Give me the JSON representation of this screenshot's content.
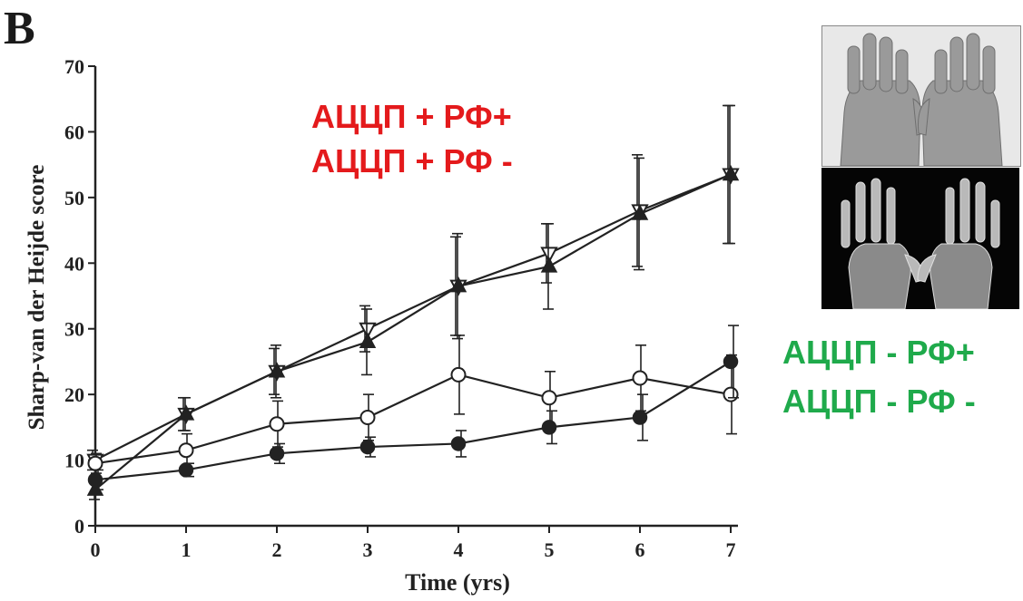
{
  "panel_label": "B",
  "overlay_labels": {
    "red": [
      "АЦЦП + РФ+",
      "АЦЦП + РФ -"
    ],
    "green": [
      "АЦЦП - РФ+",
      "АЦЦП - РФ -"
    ]
  },
  "colors": {
    "red_label": "#e41a1c",
    "green_label": "#1faa4b",
    "plot_ink": "#222222"
  },
  "chart_data": {
    "type": "line",
    "xlabel": "Time (yrs)",
    "ylabel": "Sharp-van der Heijde score",
    "xlim": [
      0,
      7
    ],
    "ylim": [
      0,
      70
    ],
    "xticks": [
      0,
      1,
      2,
      3,
      4,
      5,
      6,
      7
    ],
    "yticks": [
      0,
      10,
      20,
      30,
      40,
      50,
      60,
      70
    ],
    "grid": false,
    "x": [
      0,
      1,
      2,
      3,
      4,
      5,
      6,
      7
    ],
    "series": [
      {
        "marker": "triangle-down-open",
        "values": [
          10,
          17,
          23.5,
          30,
          36.5,
          41.5,
          48,
          53.5
        ],
        "err": [
          1.5,
          2.5,
          3.5,
          3.5,
          7.5,
          4.5,
          8.5,
          10.5
        ]
      },
      {
        "marker": "triangle-up-filled",
        "values": [
          5.5,
          17,
          23.5,
          28,
          36.5,
          39.5,
          47.5,
          53.5
        ],
        "err": [
          1.5,
          2.5,
          4,
          5,
          8,
          6.5,
          8.5,
          10.5
        ]
      },
      {
        "marker": "circle-open",
        "values": [
          9.5,
          11.5,
          15.5,
          16.5,
          23,
          19.5,
          22.5,
          20
        ],
        "err": [
          1.5,
          2.5,
          3.5,
          3.5,
          6,
          4,
          5,
          6
        ]
      },
      {
        "marker": "circle-filled",
        "values": [
          7,
          8.5,
          11,
          12,
          12.5,
          15,
          16.5,
          25
        ],
        "err": [
          1.5,
          1,
          1.5,
          1.5,
          2,
          2.5,
          3.5,
          5.5
        ]
      }
    ]
  }
}
